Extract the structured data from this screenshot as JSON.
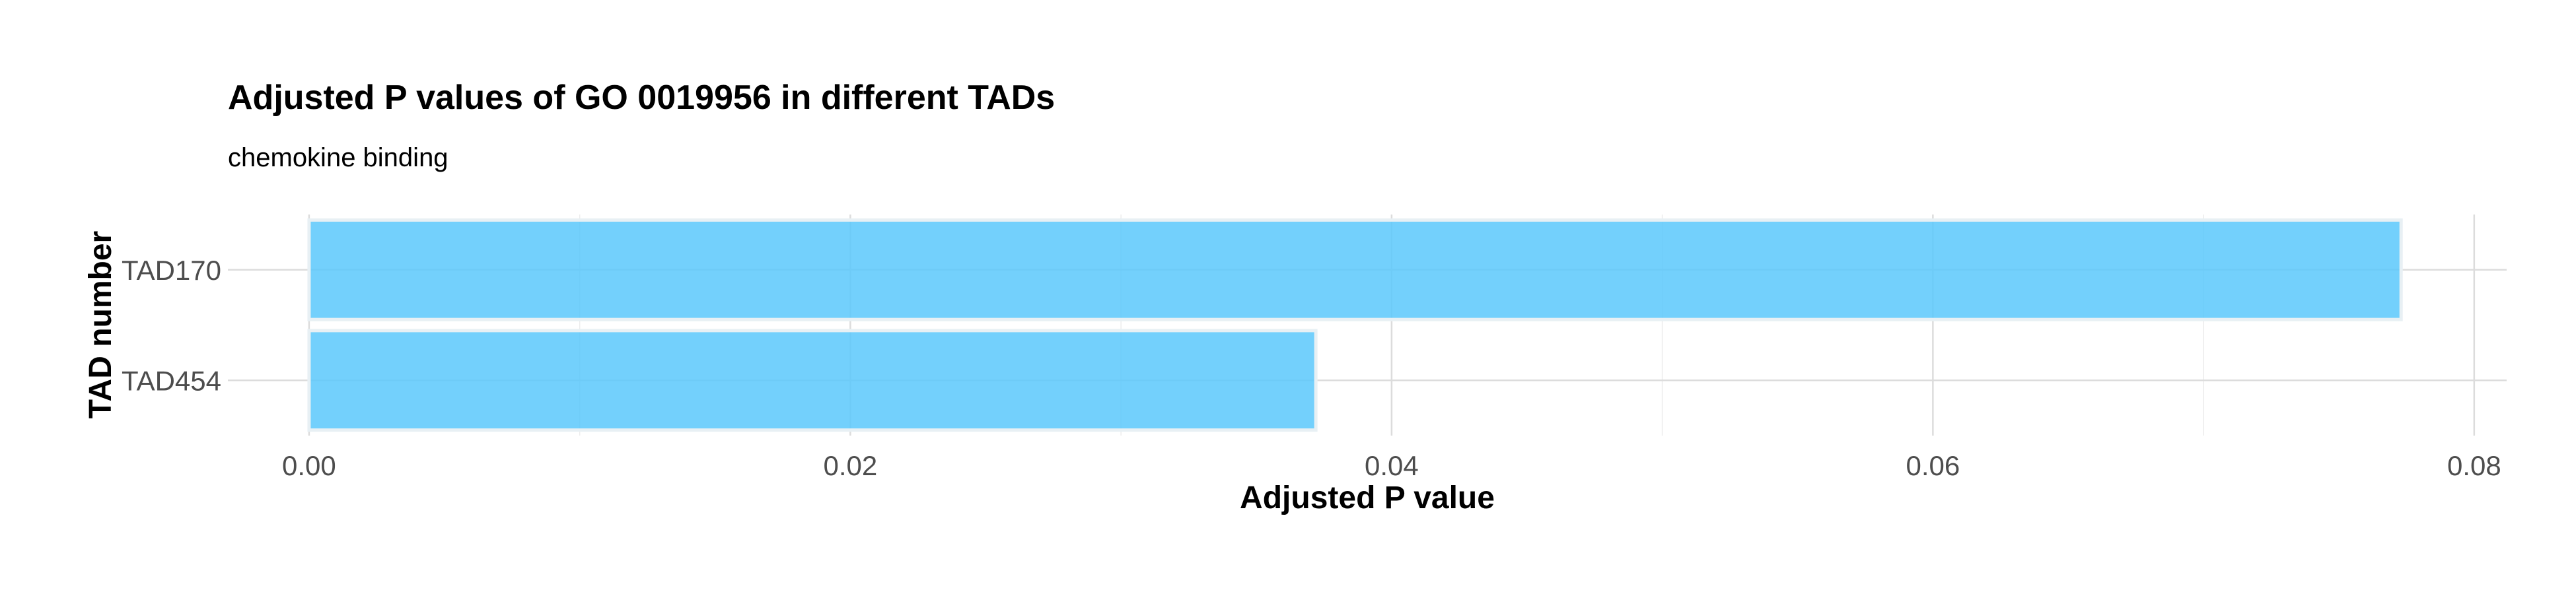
{
  "chart_data": {
    "type": "bar",
    "orientation": "horizontal",
    "title": "Adjusted P values of GO 0019956 in different TADs",
    "subtitle": "chemokine binding",
    "xlabel": "Adjusted P value",
    "ylabel": "TAD number",
    "categories": [
      "TAD170",
      "TAD454"
    ],
    "values": [
      0.0773,
      0.0372
    ],
    "xlim": [
      -0.003,
      0.0812
    ],
    "xticks": [
      0.0,
      0.02,
      0.04,
      0.06,
      0.08
    ],
    "xtick_labels": [
      "0.00",
      "0.02",
      "0.04",
      "0.06",
      "0.08"
    ],
    "grid": true,
    "bar_color": "#5bc8fb"
  }
}
